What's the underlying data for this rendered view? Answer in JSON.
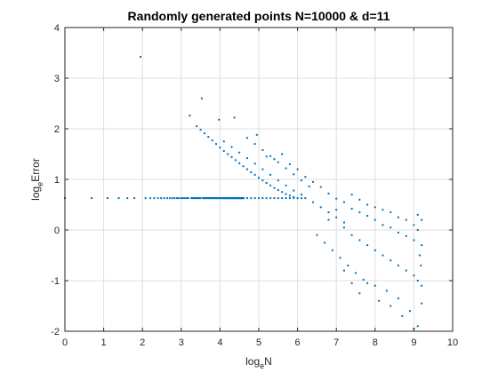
{
  "chart_data": {
    "type": "scatter",
    "title": "Randomly generated points N=10000 & d=11",
    "xlabel": {
      "base": "log",
      "subscript": "e",
      "rest": "N"
    },
    "ylabel": {
      "base": "log",
      "subscript": "e",
      "rest": "Error"
    },
    "xlim": [
      0,
      10
    ],
    "ylim": [
      -2,
      4
    ],
    "xticks": [
      "0",
      "1",
      "2",
      "3",
      "4",
      "5",
      "6",
      "7",
      "8",
      "9",
      "10"
    ],
    "yticks": [
      "-2",
      "-1",
      "0",
      "1",
      "2",
      "3",
      "4"
    ],
    "grid": true,
    "marker_color": "#0072BD",
    "points": [
      [
        0.0,
        0.63
      ],
      [
        0.69,
        0.63
      ],
      [
        1.1,
        0.63
      ],
      [
        1.39,
        0.63
      ],
      [
        1.61,
        0.63
      ],
      [
        1.79,
        0.63
      ],
      [
        1.95,
        3.42
      ],
      [
        2.08,
        0.63
      ],
      [
        2.2,
        0.63
      ],
      [
        2.3,
        0.63
      ],
      [
        2.4,
        0.63
      ],
      [
        2.48,
        0.63
      ],
      [
        2.56,
        0.63
      ],
      [
        2.64,
        0.63
      ],
      [
        2.71,
        0.63
      ],
      [
        2.77,
        0.63
      ],
      [
        2.83,
        0.63
      ],
      [
        2.89,
        0.63
      ],
      [
        2.94,
        0.63
      ],
      [
        3.0,
        0.63
      ],
      [
        3.04,
        0.63
      ],
      [
        3.09,
        0.63
      ],
      [
        3.14,
        0.63
      ],
      [
        3.18,
        0.63
      ],
      [
        3.22,
        2.26
      ],
      [
        3.26,
        0.63
      ],
      [
        3.3,
        0.63
      ],
      [
        3.33,
        0.63
      ],
      [
        3.37,
        0.63
      ],
      [
        3.4,
        0.63
      ],
      [
        3.43,
        0.63
      ],
      [
        3.47,
        0.63
      ],
      [
        3.5,
        0.63
      ],
      [
        3.53,
        2.6
      ],
      [
        3.56,
        0.63
      ],
      [
        3.58,
        0.63
      ],
      [
        3.61,
        0.63
      ],
      [
        3.64,
        0.63
      ],
      [
        3.66,
        0.63
      ],
      [
        3.69,
        0.63
      ],
      [
        3.71,
        0.63
      ],
      [
        3.74,
        0.63
      ],
      [
        3.76,
        0.63
      ],
      [
        3.78,
        0.63
      ],
      [
        3.81,
        0.63
      ],
      [
        3.83,
        0.63
      ],
      [
        3.85,
        0.63
      ],
      [
        3.87,
        0.63
      ],
      [
        3.89,
        0.63
      ],
      [
        3.91,
        0.63
      ],
      [
        3.93,
        0.63
      ],
      [
        3.95,
        0.63
      ],
      [
        3.97,
        2.18
      ],
      [
        3.99,
        0.63
      ],
      [
        4.01,
        0.63
      ],
      [
        4.03,
        0.63
      ],
      [
        4.04,
        0.63
      ],
      [
        4.06,
        0.63
      ],
      [
        4.08,
        0.63
      ],
      [
        4.09,
        0.63
      ],
      [
        4.11,
        0.63
      ],
      [
        4.13,
        0.63
      ],
      [
        4.14,
        0.63
      ],
      [
        4.16,
        0.63
      ],
      [
        4.17,
        0.63
      ],
      [
        4.19,
        0.63
      ],
      [
        4.2,
        0.63
      ],
      [
        4.22,
        0.63
      ],
      [
        4.23,
        0.63
      ],
      [
        4.25,
        0.63
      ],
      [
        4.26,
        0.63
      ],
      [
        4.28,
        0.63
      ],
      [
        4.29,
        0.63
      ],
      [
        4.3,
        0.63
      ],
      [
        4.32,
        0.63
      ],
      [
        4.33,
        0.63
      ],
      [
        4.34,
        0.63
      ],
      [
        4.36,
        0.63
      ],
      [
        4.37,
        2.22
      ],
      [
        4.38,
        0.63
      ],
      [
        4.39,
        0.63
      ],
      [
        4.41,
        0.63
      ],
      [
        4.42,
        0.63
      ],
      [
        4.43,
        0.63
      ],
      [
        4.44,
        0.63
      ],
      [
        4.45,
        0.63
      ],
      [
        4.47,
        0.63
      ],
      [
        4.48,
        0.63
      ],
      [
        4.49,
        0.63
      ],
      [
        4.5,
        0.63
      ],
      [
        4.51,
        0.63
      ],
      [
        4.52,
        0.63
      ],
      [
        4.53,
        0.63
      ],
      [
        4.54,
        0.63
      ],
      [
        4.55,
        0.63
      ],
      [
        4.56,
        0.63
      ],
      [
        4.57,
        0.63
      ],
      [
        4.58,
        0.63
      ],
      [
        4.6,
        0.63
      ],
      [
        4.61,
        0.63
      ],
      [
        4.7,
        0.63
      ],
      [
        4.8,
        0.63
      ],
      [
        4.9,
        0.63
      ],
      [
        5.0,
        0.63
      ],
      [
        5.1,
        0.63
      ],
      [
        5.2,
        0.63
      ],
      [
        5.3,
        0.63
      ],
      [
        5.4,
        0.63
      ],
      [
        5.5,
        0.63
      ],
      [
        5.6,
        0.63
      ],
      [
        5.7,
        0.63
      ],
      [
        5.8,
        0.63
      ],
      [
        5.9,
        0.63
      ],
      [
        6.0,
        0.63
      ],
      [
        6.1,
        0.63
      ],
      [
        6.2,
        0.63
      ],
      [
        3.4,
        2.05
      ],
      [
        3.5,
        1.98
      ],
      [
        3.6,
        1.91
      ],
      [
        3.7,
        1.84
      ],
      [
        3.8,
        1.77
      ],
      [
        3.9,
        1.7
      ],
      [
        4.0,
        1.63
      ],
      [
        4.1,
        1.56
      ],
      [
        4.2,
        1.5
      ],
      [
        4.3,
        1.44
      ],
      [
        4.4,
        1.38
      ],
      [
        4.5,
        1.32
      ],
      [
        4.6,
        1.26
      ],
      [
        4.7,
        1.2
      ],
      [
        4.8,
        1.14
      ],
      [
        4.9,
        1.09
      ],
      [
        5.0,
        1.03
      ],
      [
        5.1,
        0.98
      ],
      [
        5.2,
        0.93
      ],
      [
        5.3,
        0.88
      ],
      [
        5.4,
        0.83
      ],
      [
        5.5,
        0.79
      ],
      [
        5.6,
        0.75
      ],
      [
        5.7,
        0.71
      ],
      [
        5.8,
        0.68
      ],
      [
        5.9,
        0.65
      ],
      [
        4.1,
        1.75
      ],
      [
        4.3,
        1.64
      ],
      [
        4.5,
        1.53
      ],
      [
        4.7,
        1.42
      ],
      [
        4.9,
        1.31
      ],
      [
        5.1,
        1.2
      ],
      [
        5.3,
        1.09
      ],
      [
        5.5,
        0.98
      ],
      [
        5.7,
        0.88
      ],
      [
        5.9,
        0.78
      ],
      [
        6.1,
        0.7
      ],
      [
        4.7,
        1.82
      ],
      [
        4.9,
        1.7
      ],
      [
        5.1,
        1.58
      ],
      [
        5.3,
        1.46
      ],
      [
        5.5,
        1.34
      ],
      [
        5.7,
        1.22
      ],
      [
        5.9,
        1.1
      ],
      [
        6.1,
        0.98
      ],
      [
        6.3,
        0.86
      ],
      [
        4.95,
        1.88
      ],
      [
        5.2,
        1.45
      ],
      [
        5.4,
        1.4
      ],
      [
        5.6,
        1.5
      ],
      [
        5.8,
        1.3
      ],
      [
        6.0,
        1.2
      ],
      [
        6.2,
        1.05
      ],
      [
        6.4,
        0.95
      ],
      [
        6.6,
        0.85
      ],
      [
        6.8,
        0.72
      ],
      [
        7.0,
        0.62
      ],
      [
        7.2,
        0.55
      ],
      [
        7.4,
        0.42
      ],
      [
        7.6,
        0.35
      ],
      [
        7.8,
        0.28
      ],
      [
        8.0,
        0.2
      ],
      [
        8.2,
        0.1
      ],
      [
        8.4,
        0.05
      ],
      [
        8.6,
        -0.05
      ],
      [
        8.8,
        -0.12
      ],
      [
        9.0,
        -0.2
      ],
      [
        6.5,
        -0.1
      ],
      [
        6.7,
        -0.25
      ],
      [
        6.9,
        -0.4
      ],
      [
        7.1,
        -0.55
      ],
      [
        7.3,
        -0.7
      ],
      [
        7.5,
        -0.85
      ],
      [
        7.7,
        -0.98
      ],
      [
        8.0,
        -1.1
      ],
      [
        8.3,
        -1.2
      ],
      [
        8.6,
        -1.35
      ],
      [
        8.9,
        -1.6
      ],
      [
        9.0,
        -1.95
      ],
      [
        9.1,
        -1.9
      ],
      [
        9.2,
        -1.45
      ],
      [
        7.2,
        -0.8
      ],
      [
        7.4,
        -1.05
      ],
      [
        7.6,
        -1.25
      ],
      [
        7.8,
        -1.05
      ],
      [
        8.1,
        -1.4
      ],
      [
        8.4,
        -1.5
      ],
      [
        8.7,
        -1.7
      ],
      [
        6.8,
        0.2
      ],
      [
        7.0,
        0.4
      ],
      [
        7.2,
        0.15
      ],
      [
        7.4,
        0.7
      ],
      [
        7.6,
        0.6
      ],
      [
        7.8,
        0.5
      ],
      [
        8.0,
        0.45
      ],
      [
        8.2,
        0.4
      ],
      [
        8.4,
        0.35
      ],
      [
        8.6,
        0.25
      ],
      [
        8.8,
        0.2
      ],
      [
        9.0,
        0.1
      ],
      [
        9.1,
        0.0
      ],
      [
        9.2,
        -0.3
      ],
      [
        6.4,
        0.55
      ],
      [
        6.6,
        0.45
      ],
      [
        6.8,
        0.35
      ],
      [
        7.0,
        0.25
      ],
      [
        7.2,
        0.05
      ],
      [
        7.4,
        -0.1
      ],
      [
        7.6,
        -0.2
      ],
      [
        7.8,
        -0.3
      ],
      [
        8.0,
        -0.4
      ],
      [
        8.2,
        -0.5
      ],
      [
        8.4,
        -0.6
      ],
      [
        8.6,
        -0.7
      ],
      [
        8.8,
        -0.8
      ],
      [
        9.0,
        -0.9
      ],
      [
        9.1,
        -1.0
      ],
      [
        9.2,
        -1.1
      ],
      [
        9.15,
        -0.5
      ],
      [
        9.18,
        -0.7
      ],
      [
        9.2,
        0.2
      ],
      [
        9.1,
        0.3
      ]
    ]
  }
}
